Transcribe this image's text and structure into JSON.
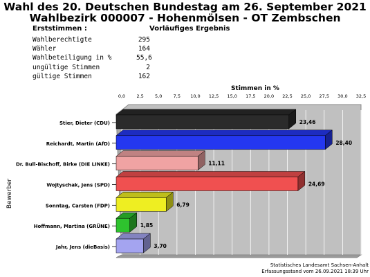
{
  "header": {
    "title_line1": "Wahl des 20. Deutschen Bundestag am 26. September 2021",
    "title_line2": "Wahlbezirk 000007 - Hohenmölsen - OT Zembschen",
    "section_label": "Erststimmen  :",
    "status": "Vorläufiges Ergebnis"
  },
  "stats": [
    {
      "label": "Wahlberechtigte",
      "value": "295"
    },
    {
      "label": "Wähler",
      "value": "164"
    },
    {
      "label": "Wahlbeteiligung in %",
      "value": "55,6"
    },
    {
      "label": "ungültige Stimmen",
      "value": "2"
    },
    {
      "label": "gültige Stimmen",
      "value": "162"
    }
  ],
  "chart_data": {
    "type": "bar",
    "orientation": "horizontal",
    "xlabel": "Stimmen in %",
    "ylabel": "Bewerber",
    "xlim": [
      0,
      32.5
    ],
    "xtick_step": 2.5,
    "xtick_labels": [
      "0,0",
      "2,5",
      "5,0",
      "7,5",
      "10,0",
      "12,5",
      "15,0",
      "17,5",
      "20,0",
      "22,5",
      "25,0",
      "27,5",
      "30,0",
      "32,5"
    ],
    "grid": true,
    "categories": [
      "Stier, Dieter (CDU)",
      "Reichardt, Martin (AfD)",
      "Dr. Bull-Bischoff, Birke (DIE LINKE)",
      "Wojtyschak, Jens (SPD)",
      "Sonntag, Carsten (FDP)",
      "Hoffmann, Martina (GRÜNE)",
      "Jahr, Jens (dieBasis)"
    ],
    "values": [
      23.46,
      28.4,
      11.11,
      24.69,
      6.79,
      1.85,
      3.7
    ],
    "value_labels": [
      "23,46",
      "28,40",
      "11,11",
      "24,69",
      "6,79",
      "1,85",
      "3,70"
    ],
    "colors": [
      "#2b2b2b",
      "#2437f0",
      "#f0a3a3",
      "#f05050",
      "#eeee22",
      "#2ec32e",
      "#a4a4f0"
    ]
  },
  "footer": {
    "source": "Statistisches Landesamt Sachsen-Anhalt",
    "timestamp": "Erfassungsstand vom 26.09.2021 18:39 Uhr"
  }
}
